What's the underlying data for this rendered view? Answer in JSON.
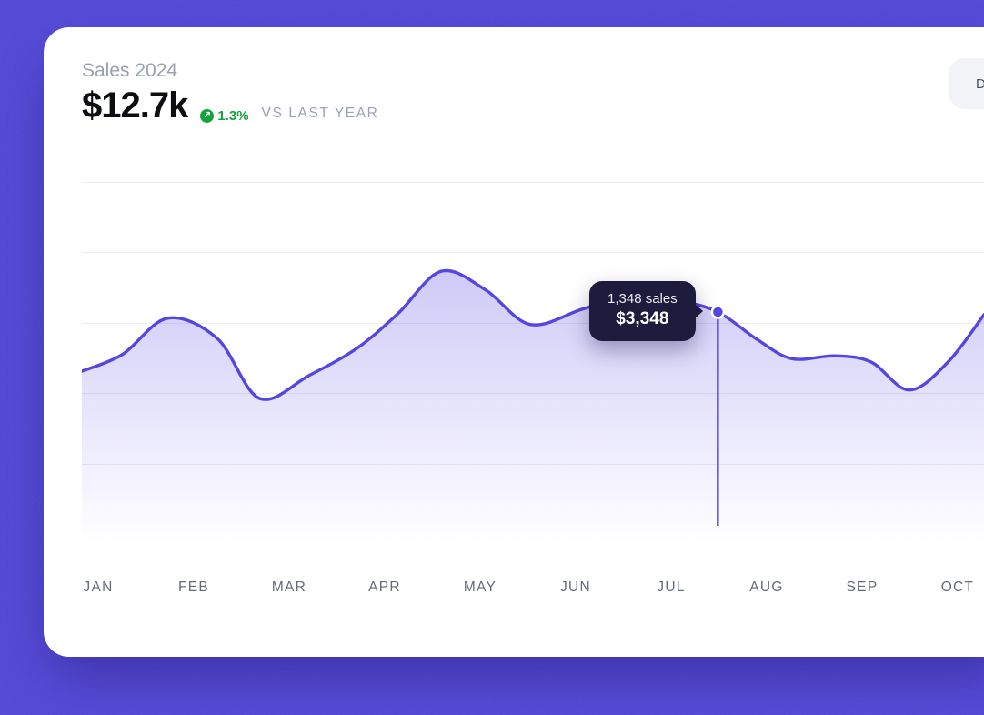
{
  "header": {
    "title": "Sales 2024",
    "total": "$12.7k",
    "change_value": "1.3%",
    "change_direction": "up",
    "comparison_label": "VS LAST YEAR"
  },
  "controls": {
    "dropdown_label": "D"
  },
  "tooltip": {
    "line1": "1,348 sales",
    "line2": "$3,348"
  },
  "style": {
    "background_color": "#5b50e4",
    "card_color": "#ffffff",
    "line_color": "#5646e0",
    "area_color": "#6456e8",
    "tooltip_bg": "#1f1b3d",
    "positive_color": "#13a33c",
    "muted_text": "#98a0ad",
    "axis_text": "#646b78"
  },
  "chart_data": {
    "type": "area",
    "title": "Sales 2024",
    "months": [
      "JAN",
      "FEB",
      "MAR",
      "APR",
      "MAY",
      "JUN",
      "JUL",
      "AUG",
      "SEP",
      "OCT"
    ],
    "unit": "USD",
    "ylim": [
      0,
      5470
    ],
    "grid": true,
    "y_axis_labels": "none",
    "points": [
      {
        "x": 0.0,
        "v": 2500
      },
      {
        "x": 0.045,
        "v": 2740
      },
      {
        "x": 0.095,
        "v": 3260
      },
      {
        "x": 0.15,
        "v": 2970
      },
      {
        "x": 0.197,
        "v": 2110
      },
      {
        "x": 0.252,
        "v": 2440
      },
      {
        "x": 0.305,
        "v": 2830
      },
      {
        "x": 0.35,
        "v": 3320
      },
      {
        "x": 0.398,
        "v": 3930
      },
      {
        "x": 0.447,
        "v": 3670
      },
      {
        "x": 0.497,
        "v": 3170
      },
      {
        "x": 0.555,
        "v": 3390
      },
      {
        "x": 0.615,
        "v": 3630
      },
      {
        "x": 0.66,
        "v": 3520
      },
      {
        "x": 0.705,
        "v": 3348
      },
      {
        "x": 0.748,
        "v": 2960
      },
      {
        "x": 0.787,
        "v": 2680
      },
      {
        "x": 0.835,
        "v": 2720
      },
      {
        "x": 0.875,
        "v": 2630
      },
      {
        "x": 0.917,
        "v": 2230
      },
      {
        "x": 0.96,
        "v": 2630
      },
      {
        "x": 1.0,
        "v": 3310
      }
    ],
    "highlight": {
      "x": 0.705,
      "value": 3348,
      "sales_count": 1348,
      "label_sales": "1,348 sales",
      "label_value": "$3,348",
      "month_region": "JUL-AUG"
    }
  }
}
